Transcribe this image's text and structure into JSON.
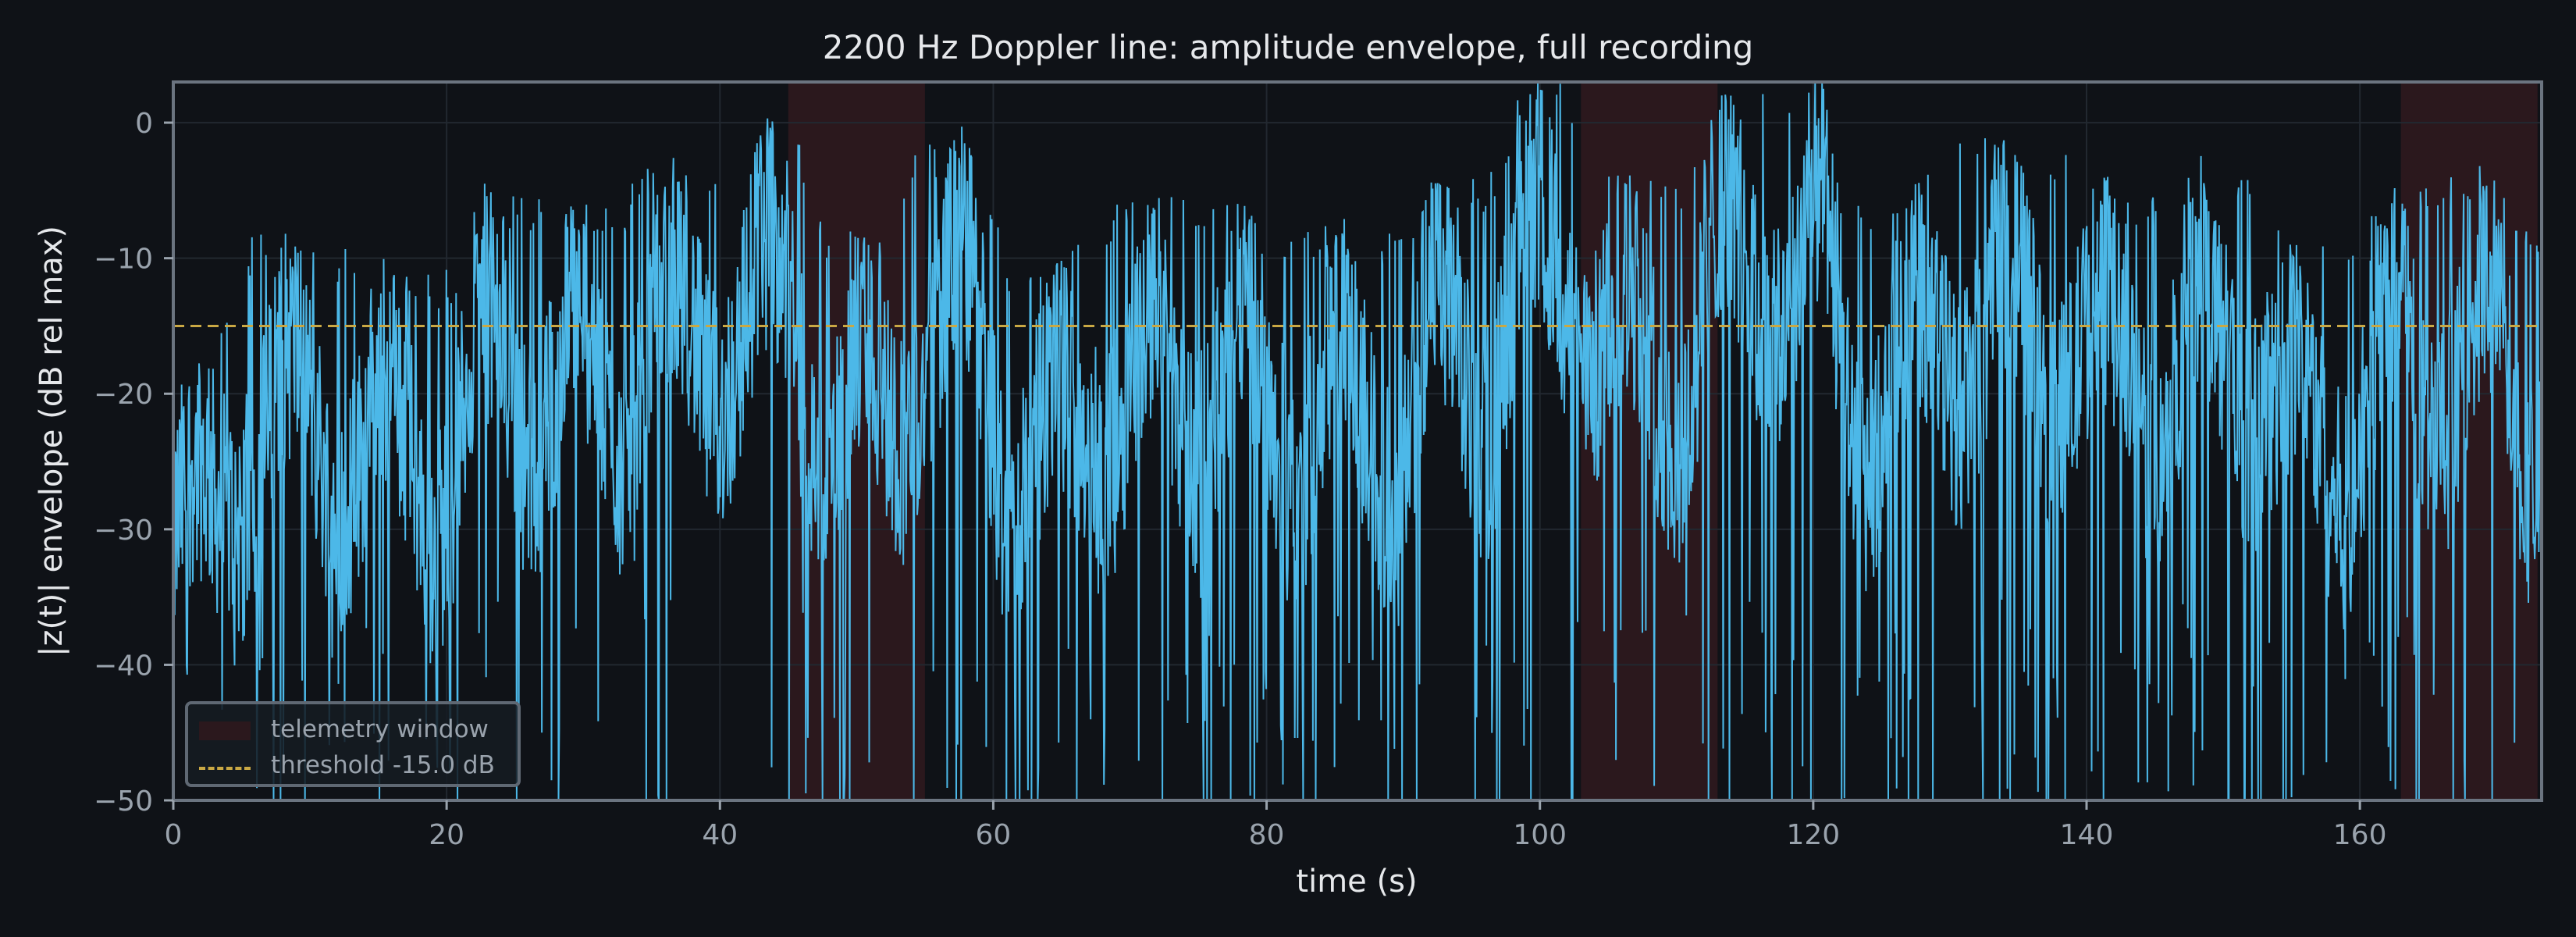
{
  "title": "2200 Hz Doppler line: amplitude envelope, full recording",
  "colors": {
    "background": "#0f1217",
    "axes_frame": "#6b7480",
    "grid": "#222830",
    "signal": "#4cb8e8",
    "threshold": "#c9a844",
    "telemetry_window": "#2b181d",
    "tick_label": "#9aa3ad",
    "text": "#e6e8eb"
  },
  "legend": {
    "items": [
      {
        "label": "telemetry window",
        "type": "patch"
      },
      {
        "label": "threshold -15.0 dB",
        "type": "dashed-line"
      }
    ]
  },
  "chart_data": {
    "type": "line",
    "title": "2200 Hz Doppler line: amplitude envelope, full recording",
    "xlabel": "time (s)",
    "ylabel": "|z(t)| envelope (dB rel max)",
    "xlim": [
      0,
      173.3
    ],
    "ylim": [
      -50,
      3
    ],
    "xticks": [
      0,
      20,
      40,
      60,
      80,
      100,
      120,
      140,
      160
    ],
    "yticks": [
      0,
      -10,
      -20,
      -30,
      -40,
      -50
    ],
    "ytick_labels": [
      "0",
      "−10",
      "−20",
      "−30",
      "−40",
      "−50"
    ],
    "grid": true,
    "legend_position": "lower left",
    "threshold_db": -15.0,
    "telemetry_windows": [
      [
        45,
        55
      ],
      [
        103,
        113
      ],
      [
        163,
        173
      ]
    ],
    "series": [
      {
        "name": "|z(t)| envelope",
        "description": "dense noisy envelope, fluctuating roughly between -50 and 0 dB with slow bursts",
        "burst_peaks": [
          {
            "t": 1,
            "db": -17
          },
          {
            "t": 7,
            "db": -8
          },
          {
            "t": 12,
            "db": -9
          },
          {
            "t": 18,
            "db": -11
          },
          {
            "t": 25,
            "db": -5
          },
          {
            "t": 30,
            "db": -6
          },
          {
            "t": 37,
            "db": -3
          },
          {
            "t": 43,
            "db": 0
          },
          {
            "t": 50,
            "db": -8
          },
          {
            "t": 57,
            "db": -1
          },
          {
            "t": 63,
            "db": -11
          },
          {
            "t": 69,
            "db": -6
          },
          {
            "t": 74,
            "db": -5
          },
          {
            "t": 82,
            "db": -7
          },
          {
            "t": 88,
            "db": -8
          },
          {
            "t": 94,
            "db": -4
          },
          {
            "t": 101,
            "db": 3
          },
          {
            "t": 107,
            "db": -4
          },
          {
            "t": 117,
            "db": 3
          },
          {
            "t": 126,
            "db": -6
          },
          {
            "t": 131,
            "db": -1
          },
          {
            "t": 137,
            "db": -2
          },
          {
            "t": 144,
            "db": -5
          },
          {
            "t": 150,
            "db": -3
          },
          {
            "t": 157,
            "db": -9
          },
          {
            "t": 163,
            "db": -5
          },
          {
            "t": 169,
            "db": -3
          },
          {
            "t": 173,
            "db": -8
          }
        ],
        "median_db": -25,
        "min_db": -50
      }
    ]
  }
}
